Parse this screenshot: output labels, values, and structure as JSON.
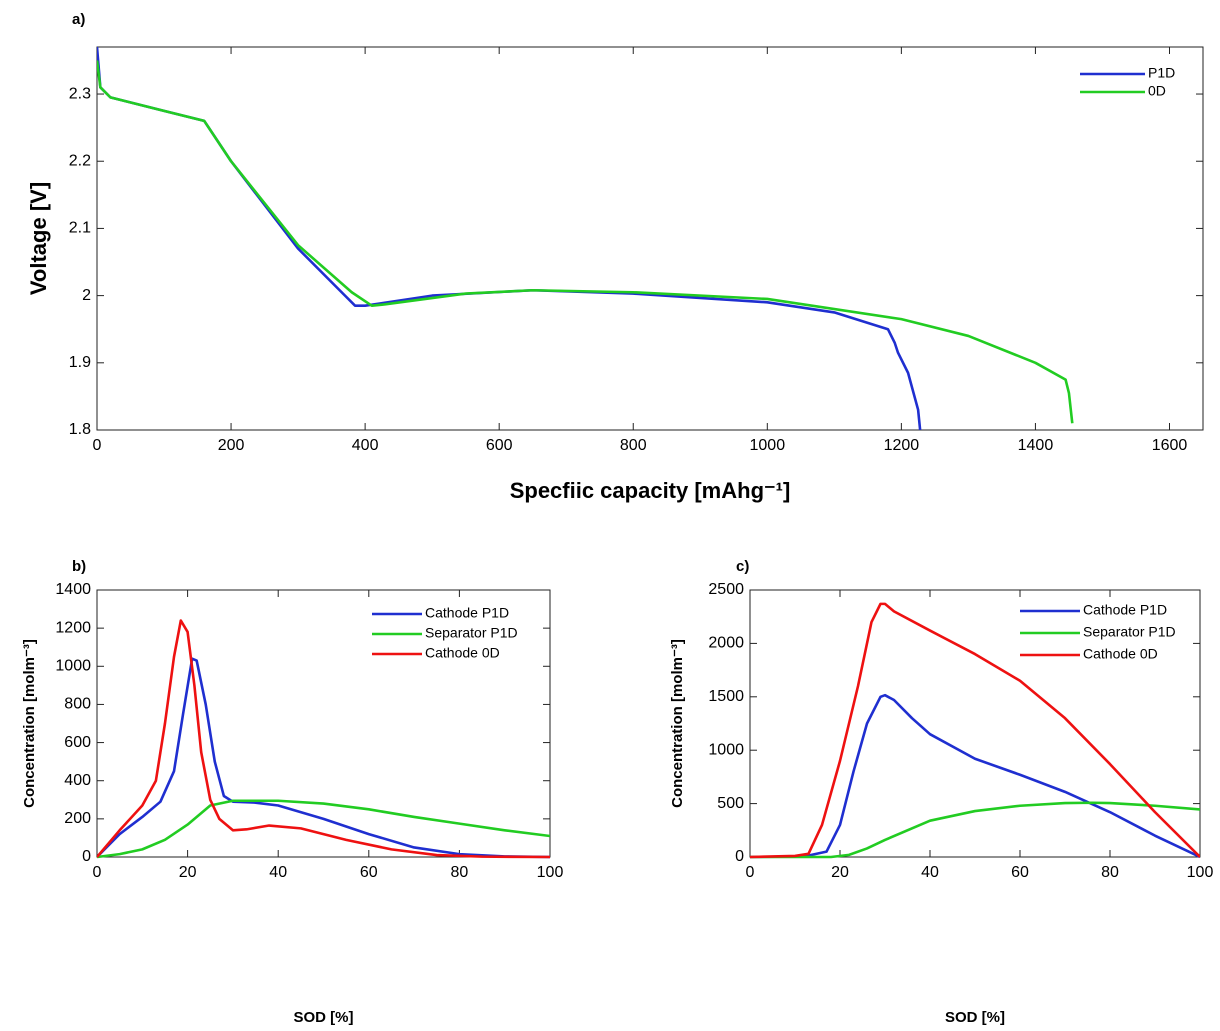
{
  "chart_data": [
    {
      "type": "line",
      "label": "a)",
      "xlabel": "Specfiic capacity [mAhg⁻¹]",
      "ylabel": "Voltage [V]",
      "xlim": [
        0,
        1650
      ],
      "ylim": [
        1.8,
        2.37
      ],
      "xticks": [
        0,
        200,
        400,
        600,
        800,
        1000,
        1200,
        1400,
        1600
      ],
      "yticks": [
        1.8,
        1.9,
        2,
        2.1,
        2.2,
        2.3
      ],
      "legend": "northeast",
      "series": [
        {
          "name": "P1D",
          "color": "#1f2fd0",
          "x": [
            0,
            5,
            20,
            100,
            160,
            200,
            300,
            370,
            385,
            400,
            500,
            650,
            800,
            1000,
            1100,
            1180,
            1190,
            1195,
            1210,
            1225,
            1228
          ],
          "values": [
            2.37,
            2.31,
            2.295,
            2.275,
            2.26,
            2.2,
            2.07,
            2.0,
            1.985,
            1.985,
            2.0,
            2.008,
            2.003,
            1.99,
            1.975,
            1.95,
            1.93,
            1.915,
            1.885,
            1.83,
            1.8
          ]
        },
        {
          "name": "0D",
          "color": "#22cc22",
          "x": [
            0,
            5,
            20,
            100,
            160,
            200,
            300,
            380,
            410,
            430,
            550,
            650,
            800,
            1000,
            1200,
            1300,
            1400,
            1445,
            1450,
            1455
          ],
          "values": [
            2.35,
            2.31,
            2.295,
            2.275,
            2.26,
            2.2,
            2.075,
            2.005,
            1.985,
            1.987,
            2.003,
            2.008,
            2.005,
            1.995,
            1.965,
            1.94,
            1.9,
            1.875,
            1.855,
            1.81
          ]
        }
      ]
    },
    {
      "type": "line",
      "label": "b)",
      "xlabel": "SOD [%]",
      "ylabel": "Concentration [molm⁻³]",
      "xlim": [
        0,
        100
      ],
      "ylim": [
        0,
        1400
      ],
      "xticks": [
        0,
        20,
        40,
        60,
        80,
        100
      ],
      "yticks": [
        0,
        200,
        400,
        600,
        800,
        1000,
        1200,
        1400
      ],
      "legend": "northeast",
      "series": [
        {
          "name": "Cathode P1D",
          "color": "#1f2fd0",
          "x": [
            0,
            5,
            10,
            14,
            17,
            19,
            21,
            22,
            24,
            26,
            28,
            30,
            35,
            40,
            50,
            60,
            70,
            80,
            90,
            100
          ],
          "values": [
            0,
            120,
            210,
            290,
            450,
            750,
            1040,
            1030,
            800,
            500,
            320,
            290,
            285,
            270,
            200,
            120,
            50,
            15,
            3,
            0
          ]
        },
        {
          "name": "Separator P1D",
          "color": "#22cc22",
          "x": [
            0,
            5,
            10,
            15,
            20,
            25,
            30,
            40,
            50,
            60,
            70,
            80,
            90,
            100
          ],
          "values": [
            0,
            15,
            40,
            90,
            170,
            270,
            295,
            295,
            280,
            250,
            210,
            175,
            140,
            110
          ]
        },
        {
          "name": "Cathode 0D",
          "color": "#ee1111",
          "x": [
            0,
            5,
            10,
            13,
            15,
            17,
            18.5,
            20,
            21.5,
            23,
            25,
            27,
            30,
            33,
            38,
            45,
            55,
            65,
            75,
            85,
            100
          ],
          "values": [
            0,
            140,
            270,
            400,
            700,
            1050,
            1240,
            1180,
            900,
            550,
            300,
            200,
            140,
            145,
            165,
            150,
            90,
            40,
            10,
            2,
            0
          ]
        }
      ]
    },
    {
      "type": "line",
      "label": "c)",
      "xlabel": "SOD [%]",
      "ylabel": "Concentration [molm⁻³]",
      "xlim": [
        0,
        100
      ],
      "ylim": [
        0,
        2500
      ],
      "xticks": [
        0,
        20,
        40,
        60,
        80,
        100
      ],
      "yticks": [
        0,
        500,
        1000,
        1500,
        2000,
        2500
      ],
      "legend": "northeast",
      "series": [
        {
          "name": "Cathode P1D",
          "color": "#1f2fd0",
          "x": [
            0,
            12,
            17,
            20,
            23,
            26,
            29,
            30,
            32,
            36,
            40,
            50,
            60,
            70,
            80,
            90,
            100
          ],
          "values": [
            0,
            5,
            50,
            300,
            800,
            1250,
            1500,
            1515,
            1470,
            1300,
            1150,
            920,
            770,
            610,
            420,
            200,
            0
          ]
        },
        {
          "name": "Separator P1D",
          "color": "#22cc22",
          "x": [
            0,
            18,
            22,
            26,
            30,
            40,
            50,
            60,
            70,
            76,
            80,
            90,
            100
          ],
          "values": [
            0,
            0,
            20,
            80,
            160,
            340,
            430,
            480,
            505,
            508,
            505,
            480,
            445
          ]
        },
        {
          "name": "Cathode 0D",
          "color": "#ee1111",
          "x": [
            0,
            10,
            13,
            16,
            20,
            24,
            27,
            29,
            30,
            32,
            40,
            50,
            60,
            70,
            80,
            90,
            100
          ],
          "values": [
            0,
            10,
            30,
            300,
            900,
            1600,
            2200,
            2370,
            2370,
            2300,
            2120,
            1900,
            1650,
            1300,
            870,
            420,
            0
          ]
        }
      ]
    }
  ]
}
